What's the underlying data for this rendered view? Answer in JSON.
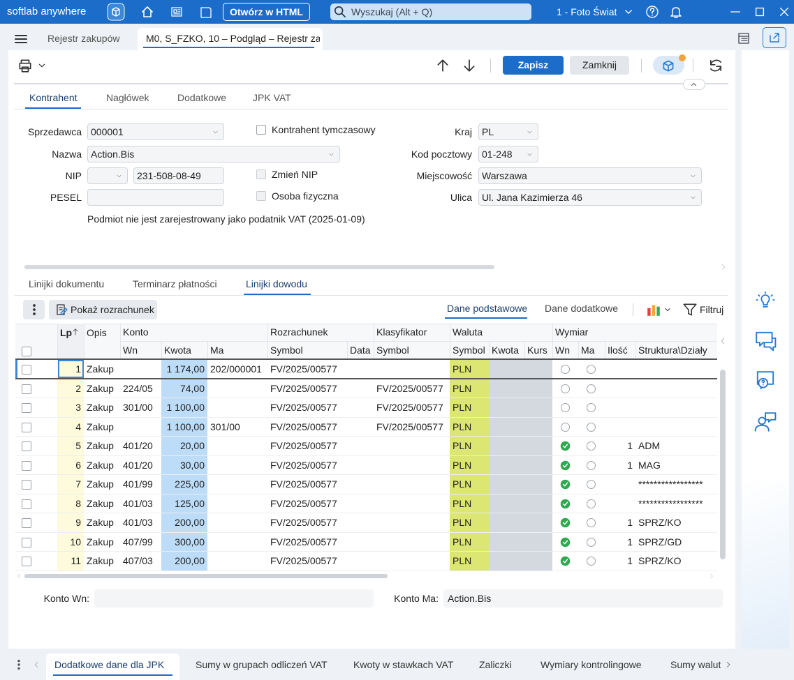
{
  "app": {
    "brand": "softlab anywhere",
    "open_html": "Otwórz w HTML",
    "search_placeholder": "Wyszukaj (Alt + Q)",
    "company": "1 - Foto Świat"
  },
  "tabs": {
    "items": [
      "Rejestr zakupów",
      "M0, S_FZKO, 10 – Podgląd – Rejestr za"
    ],
    "active": 1
  },
  "toolbar": {
    "save": "Zapisz",
    "close": "Zamknij"
  },
  "section_tabs": {
    "items": [
      "Kontrahent",
      "Nagłówek",
      "Dodatkowe",
      "JPK VAT"
    ],
    "active": 0
  },
  "form": {
    "seller": {
      "label": "Sprzedawca",
      "value": "000001"
    },
    "name": {
      "label": "Nazwa",
      "value": "Action.Bis"
    },
    "nip": {
      "label": "NIP",
      "value": "231-508-08-49"
    },
    "pesel": {
      "label": "PESEL"
    },
    "temporary": {
      "label": "Kontrahent tymczasowy",
      "checked": false,
      "disabled": false
    },
    "change_nip": {
      "label": "Zmień NIP",
      "checked": false,
      "disabled": true
    },
    "natural_person": {
      "label": "Osoba fizyczna",
      "checked": false,
      "disabled": true
    },
    "vat_note": "Podmiot nie jest zarejestrowany jako podatnik VAT (2025-01-09)",
    "country": {
      "label": "Kraj",
      "value": "PL"
    },
    "postal": {
      "label": "Kod pocztowy",
      "value": "01-248"
    },
    "city": {
      "label": "Miejscowość",
      "value": "Warszawa"
    },
    "street": {
      "label": "Ulica",
      "value": "Ul. Jana Kazimierza 46"
    }
  },
  "line_tabs": {
    "items": [
      "Linijki dokumentu",
      "Terminarz płatności",
      "Linijki dowodu"
    ],
    "active": 2
  },
  "grid_toolbar": {
    "show_settlement": "Pokaż rozrachunek",
    "views": [
      "Dane podstawowe",
      "Dane dodatkowe"
    ],
    "active_view": 0,
    "filter": "Filtruj"
  },
  "table": {
    "group_headers": [
      "Lp",
      "Opis",
      "Konto",
      "Rozrachunek",
      "Klasyfikator",
      "Waluta",
      "Wymiar"
    ],
    "column_headers": [
      "Wn",
      "Kwota",
      "Ma",
      "Symbol",
      "Data",
      "Symbol",
      "Symbol",
      "Kwota",
      "Kurs",
      "Wn",
      "Ma",
      "Ilość",
      "Struktura\\Działy"
    ],
    "selected_row": 0,
    "rows": [
      [
        "1",
        "Zakup",
        null,
        "1 174,00",
        "202/000001",
        "FV/2025/00577",
        null,
        null,
        "PLN",
        null,
        null,
        false,
        false,
        null,
        null
      ],
      [
        "2",
        "Zakup",
        "224/05",
        "74,00",
        null,
        "FV/2025/00577",
        null,
        "FV/2025/00577",
        "PLN",
        null,
        null,
        false,
        false,
        null,
        null
      ],
      [
        "3",
        "Zakup",
        "301/00",
        "1 100,00",
        null,
        "FV/2025/00577",
        null,
        "FV/2025/00577",
        "PLN",
        null,
        null,
        false,
        false,
        null,
        null
      ],
      [
        "4",
        "Zakup",
        null,
        "1 100,00",
        "301/00",
        "FV/2025/00577",
        null,
        "FV/2025/00577",
        "PLN",
        null,
        null,
        false,
        false,
        null,
        null
      ],
      [
        "5",
        "Zakup",
        "401/20",
        "20,00",
        null,
        "FV/2025/00577",
        null,
        null,
        "PLN",
        null,
        null,
        true,
        false,
        "1",
        "ADM"
      ],
      [
        "6",
        "Zakup",
        "401/20",
        "30,00",
        null,
        "FV/2025/00577",
        null,
        null,
        "PLN",
        null,
        null,
        true,
        false,
        "1",
        "MAG"
      ],
      [
        "7",
        "Zakup",
        "401/99",
        "225,00",
        null,
        "FV/2025/00577",
        null,
        null,
        "PLN",
        null,
        null,
        true,
        false,
        null,
        "*****************"
      ],
      [
        "8",
        "Zakup",
        "401/03",
        "125,00",
        null,
        "FV/2025/00577",
        null,
        null,
        "PLN",
        null,
        null,
        true,
        false,
        null,
        "*****************"
      ],
      [
        "9",
        "Zakup",
        "401/03",
        "200,00",
        null,
        "FV/2025/00577",
        null,
        null,
        "PLN",
        null,
        null,
        true,
        false,
        "1",
        "SPRZ/KO"
      ],
      [
        "10",
        "Zakup",
        "407/99",
        "300,00",
        null,
        "FV/2025/00577",
        null,
        null,
        "PLN",
        null,
        null,
        true,
        false,
        "1",
        "SPRZ/GD"
      ],
      [
        "11",
        "Zakup",
        "407/03",
        "200,00",
        null,
        "FV/2025/00577",
        null,
        null,
        "PLN",
        null,
        null,
        true,
        false,
        "1",
        "SPRZ/KO"
      ]
    ]
  },
  "footer": {
    "wn_label": "Konto Wn:",
    "ma_label": "Konto Ma:",
    "ma_value": "Action.Bis"
  },
  "bottom_tabs": {
    "items": [
      "Dodatkowe dane dla JPK",
      "Sumy w grupach odliczeń VAT",
      "Kwoty w stawkach VAT",
      "Zaliczki",
      "Wymiary kontrolingowe",
      "Sumy walut"
    ],
    "active": 0
  }
}
